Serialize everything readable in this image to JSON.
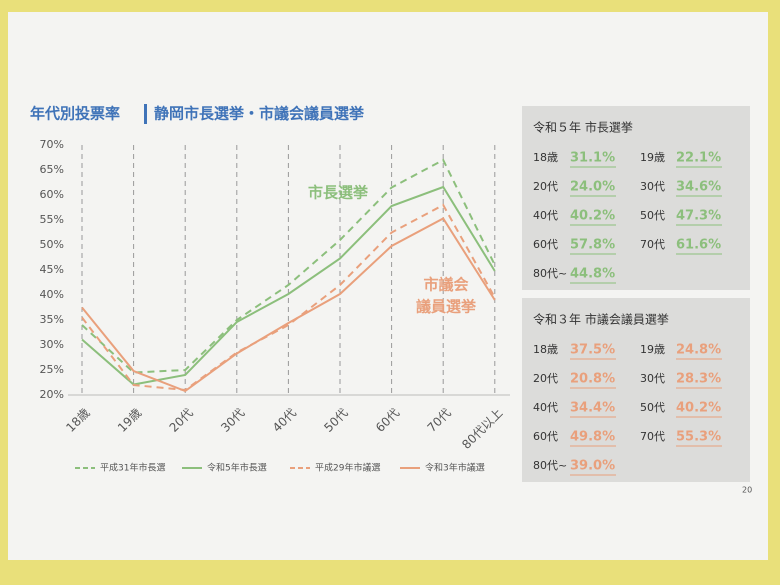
{
  "title": "年代別投票率",
  "subtitle": "静岡市長選挙・市議会議員選挙",
  "chart_data": {
    "type": "line",
    "categories": [
      "18歳",
      "19歳",
      "20代",
      "30代",
      "40代",
      "50代",
      "60代",
      "70代",
      "80代以上"
    ],
    "series": [
      {
        "name": "平成31年市長選",
        "color": "#8cbf7c",
        "dash": true,
        "values": [
          34,
          24.5,
          25,
          35,
          42,
          51,
          61.5,
          67,
          46
        ]
      },
      {
        "name": "令和5年市長選",
        "color": "#8cbf7c",
        "dash": false,
        "values": [
          31.1,
          22.1,
          24.0,
          34.6,
          40.2,
          47.3,
          57.8,
          61.6,
          44.8
        ],
        "value_labels": [
          "31.1%",
          "22.1%",
          "24.0%",
          "34.6%",
          "40.2%",
          "47.3%",
          "57.8%",
          "61.6%",
          "44.8%"
        ]
      },
      {
        "name": "平成29年市議選",
        "color": "#e9a07c",
        "dash": true,
        "values": [
          35.5,
          22,
          21,
          28.5,
          34,
          42,
          52.5,
          58,
          39.5
        ]
      },
      {
        "name": "令和3年市議選",
        "color": "#e9a07c",
        "dash": false,
        "values": [
          37.5,
          24.8,
          20.8,
          28.3,
          34.4,
          40.2,
          49.8,
          55.3,
          39.0
        ],
        "value_labels": [
          "37.5%",
          "24.8%",
          "20.8%",
          "28.3%",
          "34.4%",
          "40.2%",
          "49.8%",
          "55.3%",
          "39.0%"
        ]
      }
    ],
    "ylim": [
      20,
      70
    ],
    "yticks": [
      {
        "value": 20,
        "label": "20%"
      },
      {
        "value": 25,
        "label": "25%"
      },
      {
        "value": 30,
        "label": "30%"
      },
      {
        "value": 35,
        "label": "35%"
      },
      {
        "value": 40,
        "label": "40%"
      },
      {
        "value": 45,
        "label": "45%"
      },
      {
        "value": 50,
        "label": "50%"
      },
      {
        "value": 55,
        "label": "55%"
      },
      {
        "value": 60,
        "label": "60%"
      },
      {
        "value": 65,
        "label": "65%"
      },
      {
        "value": 70,
        "label": "70%"
      }
    ],
    "annotations": [
      "市長選挙",
      "市議会",
      "議員選挙"
    ],
    "legend": "bottom"
  },
  "panels": [
    {
      "title": "令和５年 市長選挙",
      "labels": [
        "18歳",
        "19歳",
        "20代",
        "30代",
        "40代",
        "50代",
        "60代",
        "70代",
        "80代~"
      ]
    },
    {
      "title": "令和３年 市議会議員選挙",
      "labels": [
        "18歳",
        "19歳",
        "20代",
        "30代",
        "40代",
        "50代",
        "60代",
        "70代",
        "80代~"
      ]
    }
  ],
  "page_number": "20"
}
